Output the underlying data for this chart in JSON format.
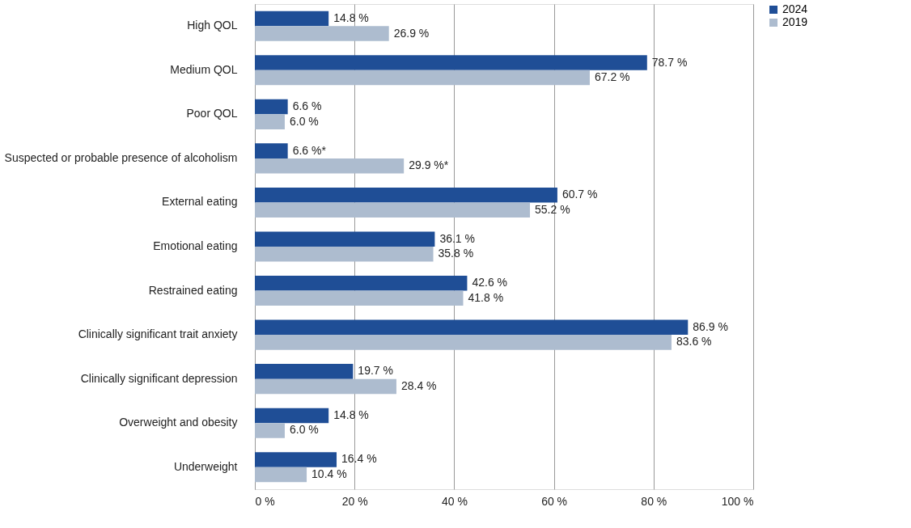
{
  "chart_data": {
    "type": "bar",
    "orientation": "horizontal",
    "categories": [
      "High QOL",
      "Medium QOL",
      "Poor QOL",
      "Suspected or probable presence of alcoholism",
      "External eating",
      "Emotional eating",
      "Restrained eating",
      "Clinically significant trait anxiety",
      "Clinically significant depression",
      "Overweight and obesity",
      "Underweight"
    ],
    "series": [
      {
        "name": "2024",
        "color": "#1f4e96",
        "values": [
          14.8,
          78.7,
          6.6,
          6.6,
          60.7,
          36.1,
          42.6,
          86.9,
          19.7,
          14.8,
          16.4
        ],
        "value_labels": [
          "14.8 %",
          "78.7 %",
          "6.6 %",
          "6.6 %*",
          "60.7 %",
          "36.1 %",
          "42.6 %",
          "86.9 %",
          "19.7 %",
          "14.8 %",
          "16.4 %"
        ]
      },
      {
        "name": "2019",
        "color": "#adbccf",
        "values": [
          26.9,
          67.2,
          6.0,
          29.9,
          55.2,
          35.8,
          41.8,
          83.6,
          28.4,
          6.0,
          10.4
        ],
        "value_labels": [
          "26.9 %",
          "67.2 %",
          "6.0 %",
          "29.9 %*",
          "55.2 %",
          "35.8 %",
          "41.8 %",
          "83.6 %",
          "28.4 %",
          "6.0 %",
          "10.4 %"
        ]
      }
    ],
    "xlim": [
      0,
      100
    ],
    "xticks": [
      {
        "value": 0,
        "label": "0 %"
      },
      {
        "value": 20,
        "label": "20 %"
      },
      {
        "value": 40,
        "label": "40 %"
      },
      {
        "value": 60,
        "label": "60 %"
      },
      {
        "value": 80,
        "label": "80 %"
      },
      {
        "value": 100,
        "label": "100 %"
      }
    ],
    "grid": "x",
    "legend": "right"
  }
}
